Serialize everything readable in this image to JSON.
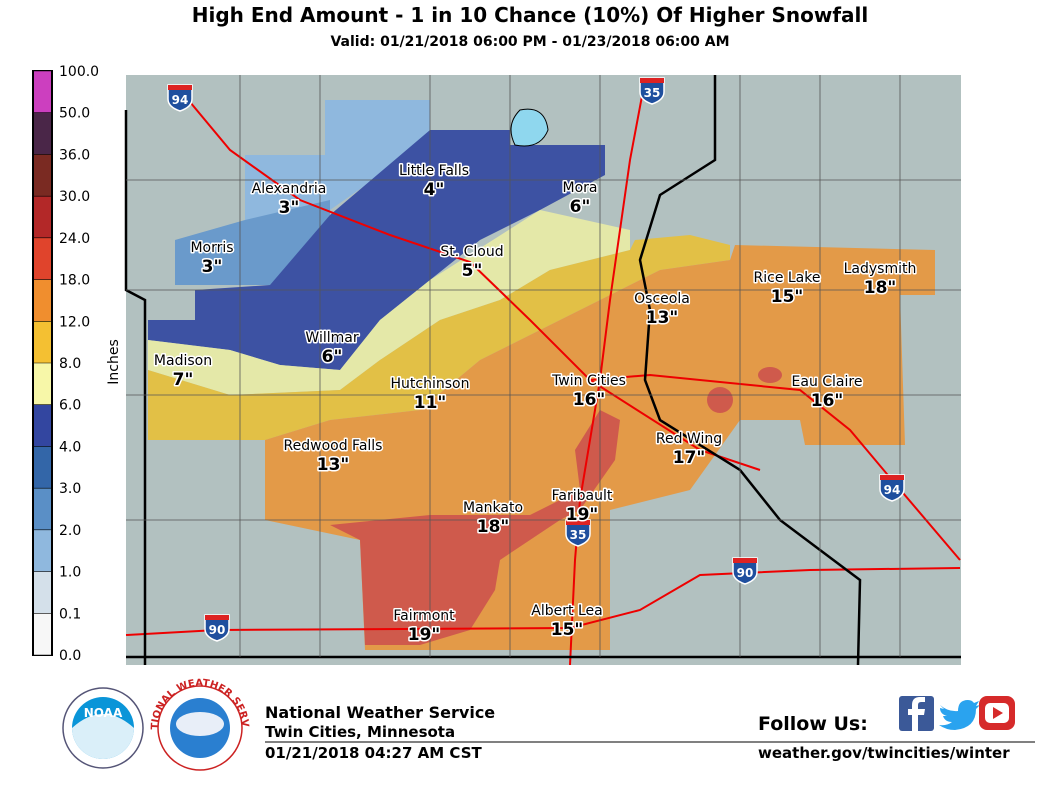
{
  "header": {
    "title": "High End Amount - 1 in 10 Chance (10%) Of Higher Snowfall",
    "subtitle": "Valid: 01/21/2018 06:00 PM - 01/23/2018 06:00 AM"
  },
  "legend": {
    "title": "Inches",
    "ticks": [
      {
        "value": 100,
        "label": "100.0"
      },
      {
        "value": 50,
        "label": "50.0"
      },
      {
        "value": 36,
        "label": "36.0"
      },
      {
        "value": 30,
        "label": "30.0"
      },
      {
        "value": 24,
        "label": "24.0"
      },
      {
        "value": 18,
        "label": "18.0"
      },
      {
        "value": 12,
        "label": "12.0"
      },
      {
        "value": 8,
        "label": "8.0"
      },
      {
        "value": 6,
        "label": "6.0"
      },
      {
        "value": 4,
        "label": "4.0"
      },
      {
        "value": 3,
        "label": "3.0"
      },
      {
        "value": 2,
        "label": "2.0"
      },
      {
        "value": 1,
        "label": "1.0"
      },
      {
        "value": 0.1,
        "label": "0.1"
      },
      {
        "value": 0,
        "label": "0.0"
      }
    ],
    "colors": [
      "#cc3fbf",
      "#4a2648",
      "#7a2a22",
      "#b32828",
      "#e0442c",
      "#f08e2e",
      "#f4c032",
      "#f7f7a8",
      "#3346a0",
      "#3366a8",
      "#5a8fc6",
      "#8fb8de",
      "#d4e0ea",
      "#f7f7f7"
    ]
  },
  "cities": [
    {
      "name": "Alexandria",
      "amount": "3\""
    },
    {
      "name": "Morris",
      "amount": "3\""
    },
    {
      "name": "Little Falls",
      "amount": "4\""
    },
    {
      "name": "Mora",
      "amount": "6\""
    },
    {
      "name": "St. Cloud",
      "amount": "5\""
    },
    {
      "name": "Madison",
      "amount": "7\""
    },
    {
      "name": "Willmar",
      "amount": "6\""
    },
    {
      "name": "Hutchinson",
      "amount": "11\""
    },
    {
      "name": "Twin Cities",
      "amount": "16\""
    },
    {
      "name": "Osceola",
      "amount": "13\""
    },
    {
      "name": "Rice Lake",
      "amount": "15\""
    },
    {
      "name": "Ladysmith",
      "amount": "18\""
    },
    {
      "name": "Eau Claire",
      "amount": "16\""
    },
    {
      "name": "Red Wing",
      "amount": "17\""
    },
    {
      "name": "Redwood Falls",
      "amount": "13\""
    },
    {
      "name": "Mankato",
      "amount": "18\""
    },
    {
      "name": "Faribault",
      "amount": "19\""
    },
    {
      "name": "Fairmont",
      "amount": "19\""
    },
    {
      "name": "Albert Lea",
      "amount": "15\""
    }
  ],
  "interstates": [
    "94",
    "35",
    "94",
    "90",
    "90",
    "35"
  ],
  "logos": {
    "noaa": "NOAA",
    "nws": "NATIONAL WEATHER SERVICE"
  },
  "footer": {
    "office": "National Weather Service",
    "location": "Twin Cities, Minnesota",
    "issued": "01/21/2018 04:27 AM CST",
    "follow": "Follow Us:",
    "url": "weather.gov/twincities/winter"
  }
}
